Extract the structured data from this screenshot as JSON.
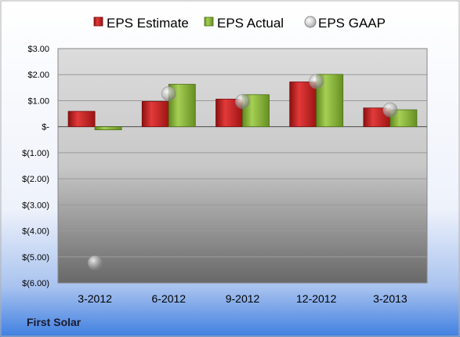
{
  "footer_label": "First Solar",
  "chart_data": {
    "type": "bar",
    "categories": [
      "3-2012",
      "6-2012",
      "9-2012",
      "12-2012",
      "3-2013"
    ],
    "series": [
      {
        "name": "EPS Estimate",
        "values": [
          0.59,
          0.97,
          1.06,
          1.72,
          0.72
        ],
        "color": "#cc2222",
        "kind": "bar"
      },
      {
        "name": "EPS Actual",
        "values": [
          -0.12,
          1.63,
          1.23,
          2.01,
          0.65
        ],
        "color": "#8dbb3c",
        "kind": "bar"
      },
      {
        "name": "EPS GAAP",
        "values": [
          -5.22,
          1.27,
          0.97,
          1.74,
          0.65
        ],
        "color": "#b0b0b0",
        "kind": "marker"
      }
    ],
    "yticks": [
      3.0,
      2.0,
      1.0,
      0.0,
      -1.0,
      -2.0,
      -3.0,
      -4.0,
      -5.0,
      -6.0
    ],
    "ytick_labels": [
      "$3.00",
      "$2.00",
      "$1.00",
      "$-",
      "$(1.00)",
      "$(2.00)",
      "$(3.00)",
      "$(4.00)",
      "$(5.00)",
      "$(6.00)"
    ],
    "ylim": [
      -6.0,
      3.0
    ],
    "legend_position": "top",
    "grid": true
  }
}
